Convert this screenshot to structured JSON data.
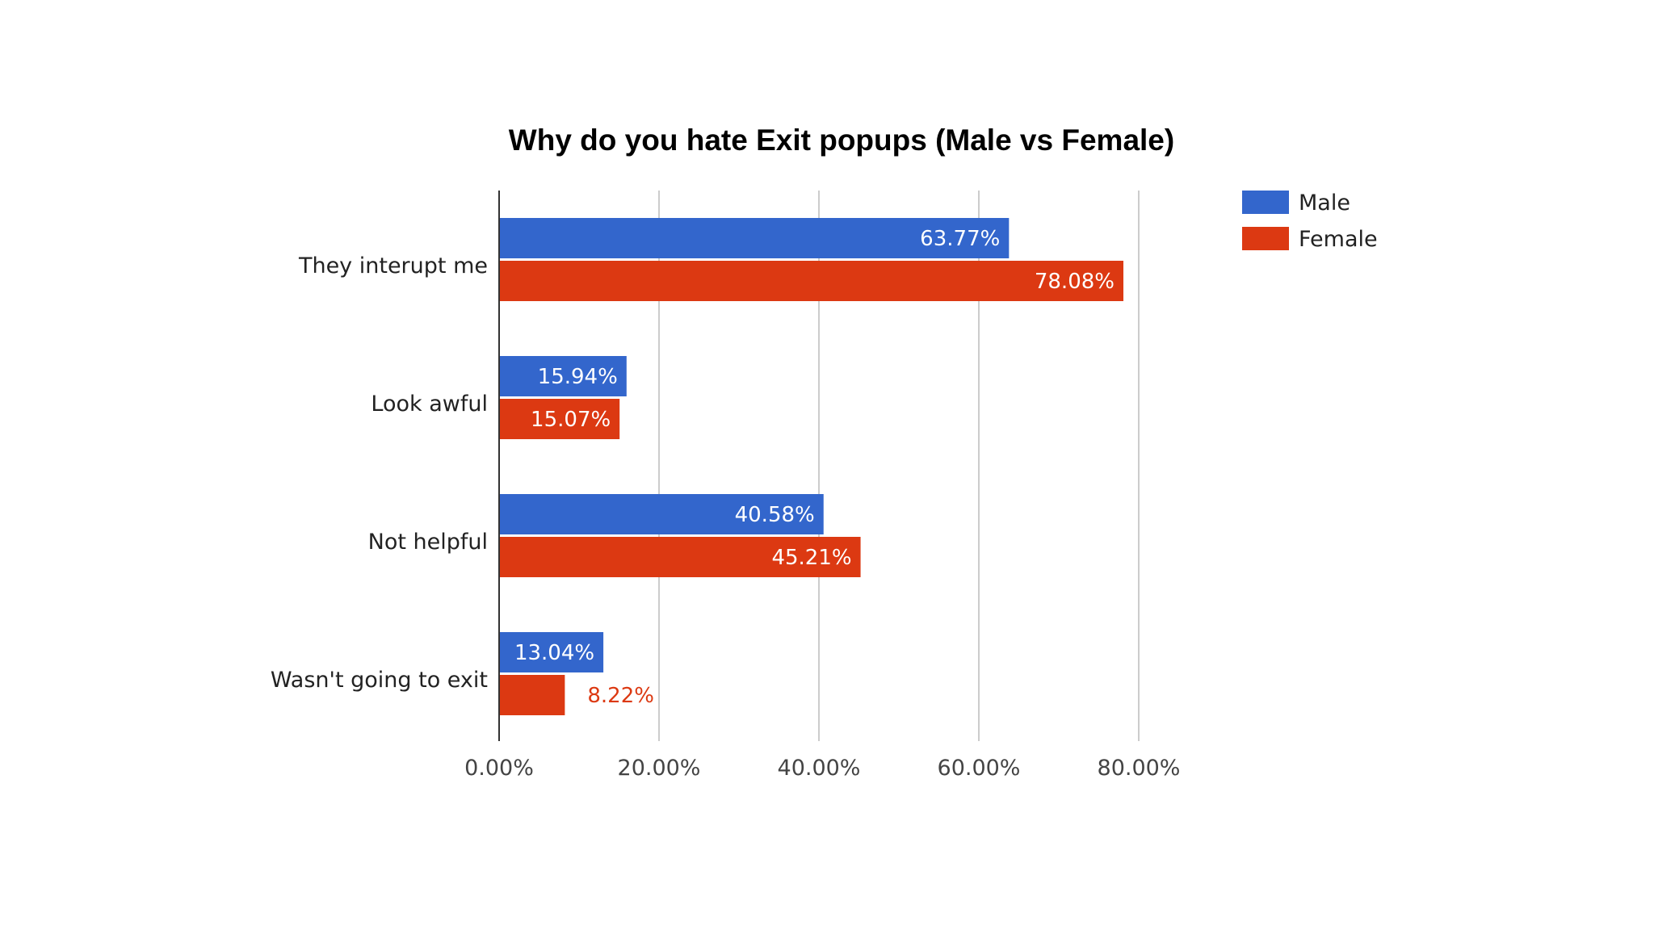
{
  "chart_data": {
    "type": "bar",
    "orientation": "horizontal",
    "title": "Why do you hate Exit popups (Male vs Female)",
    "categories": [
      "They interupt me",
      "Look awful",
      "Not helpful",
      "Wasn't going to exit"
    ],
    "series": [
      {
        "name": "Male",
        "color": "#3366cc",
        "values": [
          63.77,
          15.94,
          40.58,
          13.04
        ],
        "labels": [
          "63.77%",
          "15.94%",
          "40.58%",
          "13.04%"
        ]
      },
      {
        "name": "Female",
        "color": "#dc3912",
        "values": [
          78.08,
          15.07,
          45.21,
          8.22
        ],
        "labels": [
          "78.08%",
          "15.07%",
          "45.21%",
          "8.22%"
        ]
      }
    ],
    "xlim": [
      0,
      80
    ],
    "x_ticks": [
      0,
      20,
      40,
      60,
      80
    ],
    "x_tick_labels": [
      "0.00%",
      "20.00%",
      "40.00%",
      "60.00%",
      "80.00%"
    ],
    "grid": true,
    "legend_position": "right"
  }
}
